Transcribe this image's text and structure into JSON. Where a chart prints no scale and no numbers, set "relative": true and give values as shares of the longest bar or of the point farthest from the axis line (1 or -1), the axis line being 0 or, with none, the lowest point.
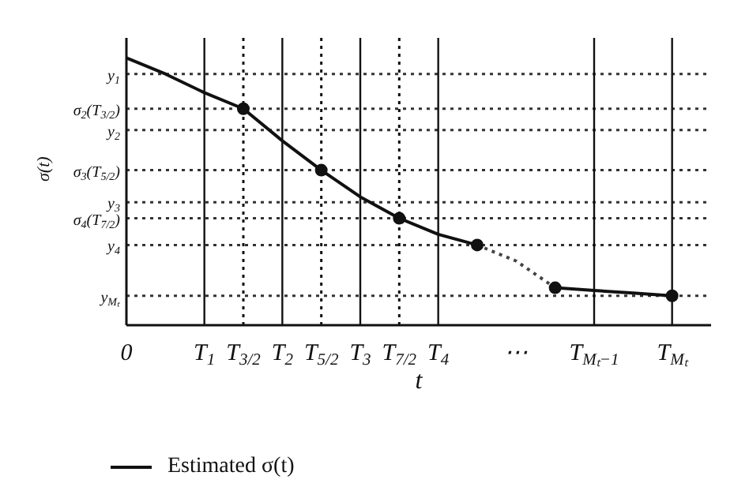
{
  "chart_data": {
    "type": "line",
    "xlabel": "t",
    "ylabel": "σ(t)",
    "relative": true,
    "categories": [
      "0",
      null,
      "T$_{1}$",
      "T$_{3/2}$",
      "T$_{2}$",
      "T$_{5/2}$",
      "T$_{3}$",
      "T$_{7/2}$",
      "T$_{4}$",
      null,
      "⋯",
      null,
      "T$_{Mₜ−1}$",
      null,
      "T$_{Mₜ}$"
    ],
    "legend": "bottom",
    "series": [
      {
        "name": "Estimated σ(t)",
        "color": "#111111",
        "marker": "none",
        "line_style": "solid",
        "values": [
          1,
          0.94,
          0.87,
          0.81,
          0.69,
          0.58,
          0.48,
          0.4,
          0.34,
          0.3,
          null,
          0.14,
          0.13,
          0.12,
          0.11
        ]
      },
      {
        "type": "line",
        "color": "#444444",
        "marker": "none",
        "line_style": "dotted",
        "values": [
          null,
          null,
          null,
          null,
          null,
          null,
          null,
          null,
          null,
          0.3,
          0.24,
          0.14,
          null,
          null,
          null
        ]
      },
      {
        "type": "scatter",
        "color": "#111111",
        "marker": "circle",
        "values": [
          null,
          null,
          null,
          0.81,
          null,
          0.58,
          null,
          0.4,
          null,
          0.3,
          null,
          0.14,
          null,
          null,
          0.11
        ]
      }
    ],
    "ref_lines": [
      {
        "axis": "y",
        "value": 0.94,
        "label": "y$_{1}$",
        "color": "#333333",
        "line_style": "dotted"
      },
      {
        "axis": "y",
        "value": 0.81,
        "label": "σ$_{2}$(T$_{3/2}$)",
        "color": "#333333",
        "line_style": "dotted"
      },
      {
        "axis": "y",
        "value": 0.73,
        "label": "y$_{2}$",
        "color": "#333333",
        "line_style": "dotted"
      },
      {
        "axis": "y",
        "value": 0.58,
        "label": "σ$_{3}$(T$_{5/2}$)",
        "color": "#333333",
        "line_style": "dotted"
      },
      {
        "axis": "y",
        "value": 0.46,
        "label": "y$_{3}$",
        "color": "#333333",
        "line_style": "dotted"
      },
      {
        "axis": "y",
        "value": 0.4,
        "label": "σ$_{4}$(T$_{7/2}$)",
        "color": "#333333",
        "line_style": "dotted"
      },
      {
        "axis": "y",
        "value": 0.3,
        "label": "y$_{4}$",
        "color": "#333333",
        "line_style": "dotted"
      },
      {
        "axis": "y",
        "value": 0.11,
        "label": "y$_{Mₜ}$",
        "color": "#333333",
        "line_style": "dotted"
      },
      {
        "axis": "x",
        "value": "T$_{1}$",
        "color": "#111111",
        "line_style": "solid"
      },
      {
        "axis": "x",
        "value": "T$_{2}$",
        "color": "#111111",
        "line_style": "solid"
      },
      {
        "axis": "x",
        "value": "T$_{3}$",
        "color": "#111111",
        "line_style": "solid"
      },
      {
        "axis": "x",
        "value": "T$_{4}$",
        "color": "#111111",
        "line_style": "solid"
      },
      {
        "axis": "x",
        "value": "T$_{Mₜ−1}$",
        "color": "#111111",
        "line_style": "solid"
      },
      {
        "axis": "x",
        "value": "T$_{Mₜ}$",
        "color": "#111111",
        "line_style": "solid"
      },
      {
        "axis": "x",
        "value": "T$_{3/2}$",
        "color": "#111111",
        "line_style": "dotted"
      },
      {
        "axis": "x",
        "value": "T$_{5/2}$",
        "color": "#111111",
        "line_style": "dotted"
      },
      {
        "axis": "x",
        "value": "T$_{7/2}$",
        "color": "#111111",
        "line_style": "dotted"
      }
    ]
  }
}
